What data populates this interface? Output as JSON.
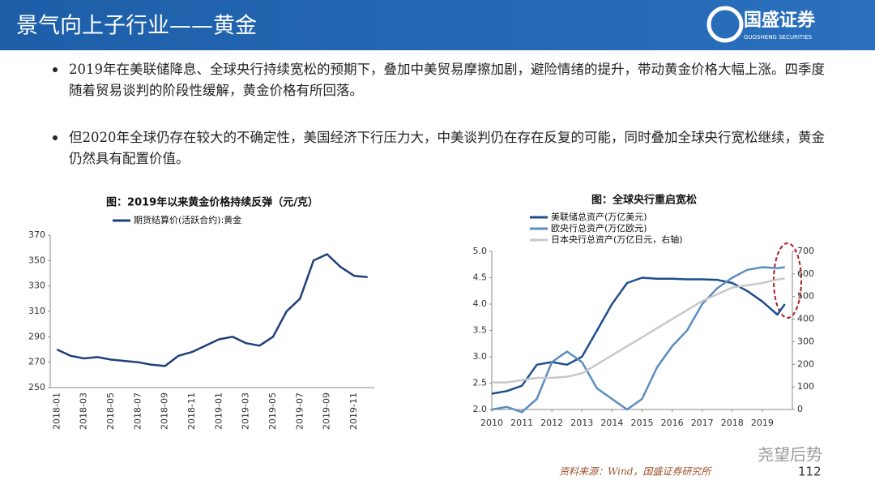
{
  "header": {
    "title": "景气向上子行业——黄金",
    "logo_name": "国盛证券",
    "logo_sub": "GUOSHENG SECURITIES"
  },
  "bullets": [
    "2019年在美联储降息、全球央行持续宽松的预期下，叠加中美贸易摩擦加剧，避险情绪的提升，带动黄金价格大幅上涨。四季度随着贸易谈判的阶段性缓解，黄金价格有所回落。",
    "但2020年全球仍存在较大的不确定性，美国经济下行压力大，中美谈判仍在存在反复的可能，同时叠加全球央行宽松继续，黄金仍然具有配置价值。"
  ],
  "chart_data": [
    {
      "type": "line",
      "title": "图：2019年以来黄金价格持续反弹（元/克）",
      "x": [
        "2018-01",
        null,
        "2018-03",
        null,
        "2018-05",
        null,
        "2018-07",
        null,
        "2018-09",
        null,
        "2018-11",
        null,
        "2019-01",
        null,
        "2019-03",
        null,
        "2019-05",
        null,
        "2019-07",
        null,
        "2019-09",
        null,
        "2019-11",
        null
      ],
      "series": [
        {
          "name": "期货结算价(活跃合约):黄金",
          "color": "#1f3f7a",
          "values": [
            280,
            275,
            273,
            274,
            272,
            271,
            270,
            268,
            267,
            275,
            278,
            283,
            288,
            290,
            285,
            283,
            290,
            310,
            320,
            350,
            355,
            345,
            338,
            337
          ]
        }
      ],
      "ylim": [
        250,
        370
      ],
      "yticks": [
        250,
        270,
        290,
        310,
        330,
        350,
        370
      ]
    },
    {
      "type": "line",
      "title": "图：全球央行重启宽松",
      "x": [
        2010,
        2010.5,
        2011,
        2011.5,
        2012,
        2012.5,
        2013,
        2013.5,
        2014,
        2014.5,
        2015,
        2015.5,
        2016,
        2016.5,
        2017,
        2017.5,
        2018,
        2018.5,
        2019,
        2019.5,
        2019.75
      ],
      "series": [
        {
          "name": "美联储总资产(万亿美元)",
          "color": "#1f4e8c",
          "values": [
            2.3,
            2.35,
            2.45,
            2.85,
            2.9,
            2.85,
            3.0,
            3.5,
            4.0,
            4.4,
            4.5,
            4.48,
            4.48,
            4.47,
            4.47,
            4.46,
            4.4,
            4.25,
            4.05,
            3.8,
            4.0
          ]
        },
        {
          "name": "欧央行总资产(万亿欧元)",
          "color": "#5b8cc0",
          "values": [
            2.0,
            2.05,
            1.95,
            2.2,
            2.9,
            3.1,
            2.9,
            2.4,
            2.2,
            2.0,
            2.2,
            2.8,
            3.2,
            3.5,
            4.0,
            4.3,
            4.5,
            4.65,
            4.7,
            4.68,
            4.7
          ]
        },
        {
          "name": "日本央行总资产(万亿日元，右轴)",
          "color": "#c8c8c8",
          "axis": "y2",
          "values": [
            120,
            120,
            130,
            140,
            140,
            145,
            160,
            200,
            240,
            280,
            320,
            360,
            400,
            440,
            480,
            510,
            540,
            550,
            560,
            575,
            580
          ]
        }
      ],
      "xlim": [
        2010,
        2020
      ],
      "xticks": [
        2010,
        2011,
        2012,
        2013,
        2014,
        2015,
        2016,
        2017,
        2018,
        2019
      ],
      "ylim": [
        2,
        5
      ],
      "yticks": [
        {
          "value": 2,
          "label": "2.0"
        },
        2.5,
        {
          "value": 3,
          "label": "3.0"
        },
        3.5,
        {
          "value": 4,
          "label": "4.0"
        },
        4.5,
        {
          "value": 5,
          "label": "5.0"
        }
      ],
      "y2lim": [
        0,
        700
      ],
      "y2ticks": [
        0,
        100,
        200,
        300,
        400,
        500,
        600,
        700
      ]
    }
  ],
  "source": "资料来源：Wind，国盛证券研究所",
  "page_number": "112",
  "watermark": "尧望后势"
}
